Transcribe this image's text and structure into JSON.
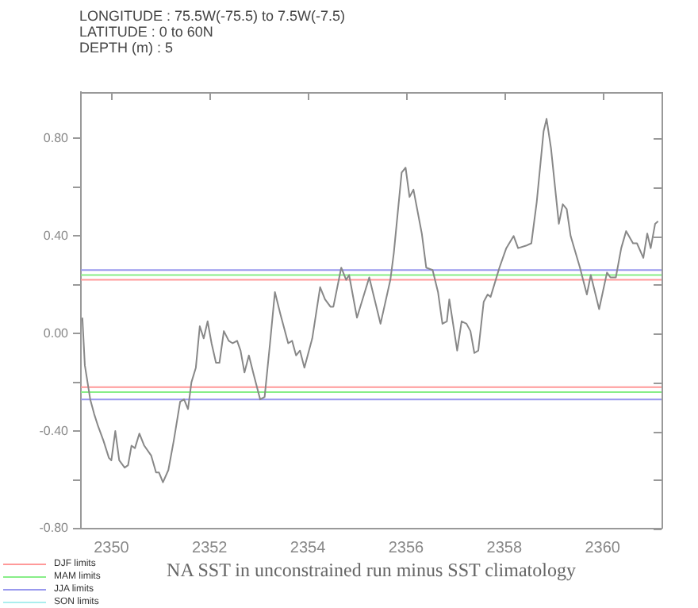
{
  "chart_data": {
    "type": "line",
    "xlabel": "NA SST in unconstrained run minus SST climatology",
    "annotations": [
      "LONGITUDE : 75.5W(-75.5) to 7.5W(-7.5)",
      "LATITUDE : 0 to 60N",
      "DEPTH (m) : 5"
    ],
    "xlim": [
      2349.38,
      2361.2
    ],
    "xticks": [
      2350,
      2352,
      2354,
      2356,
      2358,
      2360
    ],
    "ylim": [
      -0.8,
      0.99
    ],
    "yticks": [
      {
        "value": -0.8,
        "label": "-0.80"
      },
      {
        "value": -0.6,
        "label": null
      },
      {
        "value": -0.4,
        "label": "-0.40"
      },
      {
        "value": -0.2,
        "label": null
      },
      {
        "value": 0,
        "label": "0.00"
      },
      {
        "value": 0.2,
        "label": null
      },
      {
        "value": 0.4,
        "label": "0.40"
      },
      {
        "value": 0.6,
        "label": null
      },
      {
        "value": 0.8,
        "label": "0.80"
      }
    ],
    "grid": false,
    "legend": "bottom left",
    "marker": "none",
    "line_style": "solid",
    "ref_lines": [
      {
        "axis": "y",
        "value": 0.22,
        "label": "DJF limits",
        "color": "#ff9999"
      },
      {
        "axis": "y",
        "value": -0.22,
        "color": "#ff9999"
      },
      {
        "axis": "y",
        "value": 0.24,
        "label": "MAM limits",
        "color": "#88ee88"
      },
      {
        "axis": "y",
        "value": -0.24,
        "color": "#88ee88"
      },
      {
        "axis": "y",
        "value": 0.26,
        "label": "JJA limits",
        "color": "#9999ee"
      },
      {
        "axis": "y",
        "value": -0.27,
        "color": "#9999ee"
      }
    ],
    "series": [
      {
        "color": "#888888",
        "x": [
          2349.41,
          2349.46,
          2349.57,
          2349.65,
          2349.73,
          2349.84,
          2349.95,
          2350.0,
          2350.08,
          2350.16,
          2350.27,
          2350.34,
          2350.41,
          2350.48,
          2350.57,
          2350.67,
          2350.81,
          2350.91,
          2350.97,
          2351.05,
          2351.16,
          2351.27,
          2351.4,
          2351.48,
          2351.56,
          2351.63,
          2351.72,
          2351.8,
          2351.88,
          2351.96,
          2352.04,
          2352.13,
          2352.2,
          2352.29,
          2352.39,
          2352.47,
          2352.56,
          2352.63,
          2352.71,
          2352.8,
          2352.9,
          2353.03,
          2353.12,
          2353.23,
          2353.33,
          2353.44,
          2353.6,
          2353.68,
          2353.76,
          2353.84,
          2353.93,
          2354.09,
          2354.25,
          2354.35,
          2354.46,
          2354.52,
          2354.68,
          2354.78,
          2354.84,
          2355.0,
          2355.25,
          2355.48,
          2355.68,
          2355.75,
          2355.91,
          2355.99,
          2356.07,
          2356.15,
          2356.32,
          2356.41,
          2356.54,
          2356.65,
          2356.74,
          2356.83,
          2356.88,
          2357.04,
          2357.13,
          2357.23,
          2357.31,
          2357.39,
          2357.47,
          2357.58,
          2357.66,
          2357.72,
          2357.9,
          2358.04,
          2358.19,
          2358.28,
          2358.44,
          2358.55,
          2358.66,
          2358.8,
          2358.86,
          2358.95,
          2359.11,
          2359.19,
          2359.27,
          2359.35,
          2359.54,
          2359.68,
          2359.76,
          2359.93,
          2360.09,
          2360.16,
          2360.27,
          2360.38,
          2360.48,
          2360.62,
          2360.7,
          2360.83,
          2360.91,
          2360.98,
          2361.07,
          2361.13
        ],
        "values": [
          0.065,
          -0.13,
          -0.27,
          -0.33,
          -0.38,
          -0.44,
          -0.51,
          -0.52,
          -0.4,
          -0.52,
          -0.55,
          -0.54,
          -0.46,
          -0.47,
          -0.41,
          -0.46,
          -0.5,
          -0.57,
          -0.57,
          -0.61,
          -0.56,
          -0.44,
          -0.28,
          -0.27,
          -0.31,
          -0.2,
          -0.14,
          0.03,
          -0.02,
          0.05,
          -0.04,
          -0.12,
          -0.12,
          0.01,
          -0.03,
          -0.04,
          -0.03,
          -0.07,
          -0.16,
          -0.09,
          -0.17,
          -0.27,
          -0.26,
          -0.04,
          0.17,
          0.08,
          -0.04,
          -0.03,
          -0.09,
          -0.07,
          -0.14,
          -0.02,
          0.19,
          0.14,
          0.11,
          0.11,
          0.27,
          0.22,
          0.24,
          0.065,
          0.23,
          0.04,
          0.22,
          0.33,
          0.66,
          0.68,
          0.56,
          0.59,
          0.41,
          0.27,
          0.26,
          0.17,
          0.04,
          0.05,
          0.14,
          -0.07,
          0.05,
          0.04,
          0.01,
          -0.08,
          -0.07,
          0.13,
          0.16,
          0.15,
          0.27,
          0.35,
          0.4,
          0.35,
          0.36,
          0.37,
          0.54,
          0.83,
          0.88,
          0.76,
          0.45,
          0.53,
          0.51,
          0.4,
          0.27,
          0.16,
          0.24,
          0.1,
          0.25,
          0.23,
          0.23,
          0.35,
          0.42,
          0.37,
          0.37,
          0.31,
          0.41,
          0.35,
          0.45,
          0.46
        ]
      },
      {
        "name": "SON limits",
        "color": "#aaeeee"
      }
    ]
  }
}
